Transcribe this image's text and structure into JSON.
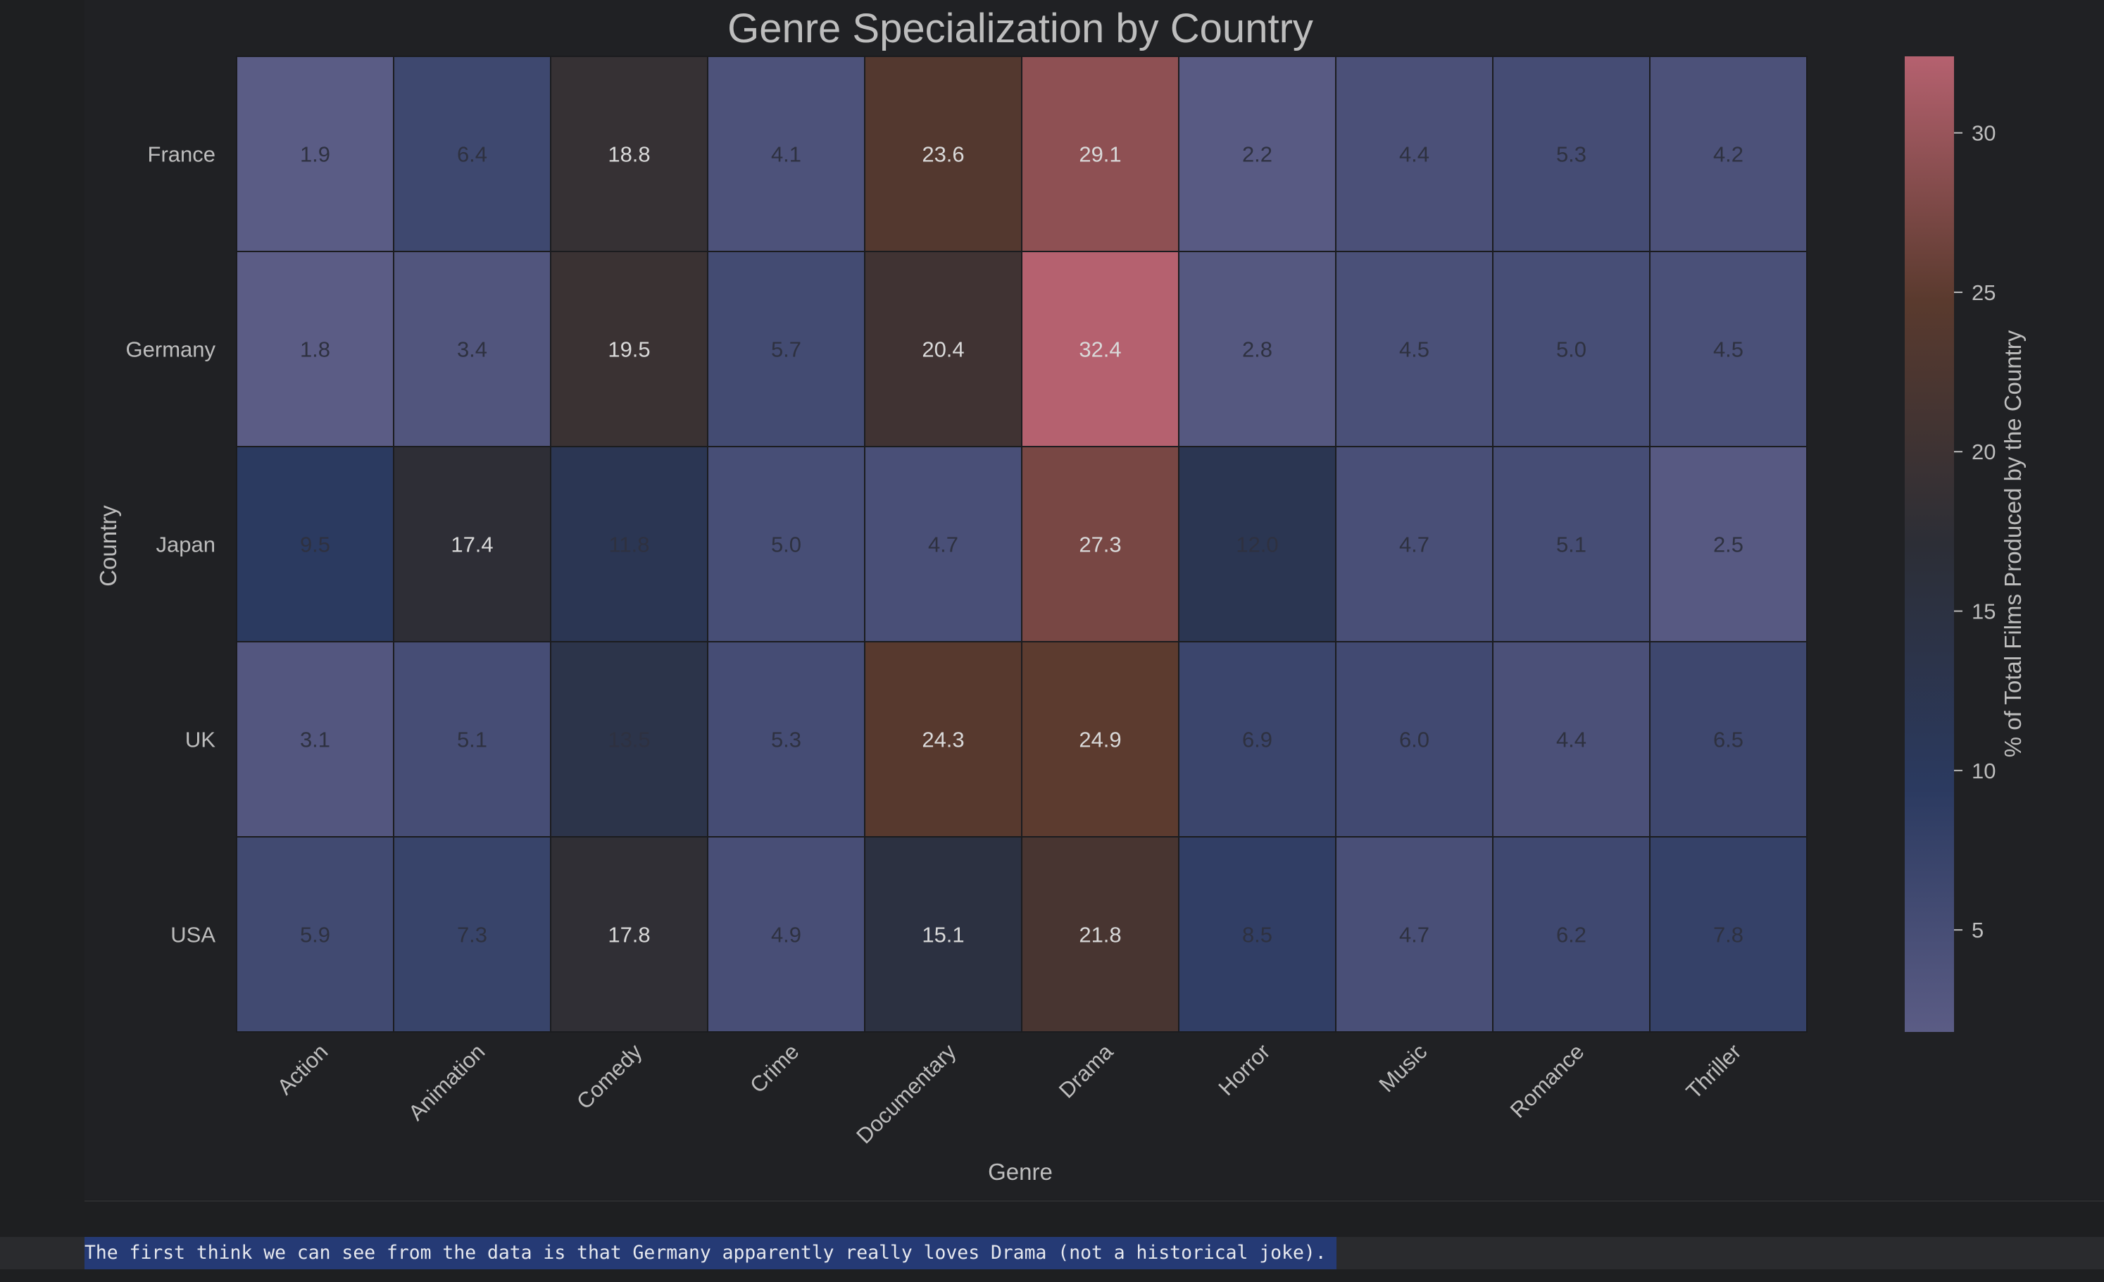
{
  "chart_data": {
    "type": "heatmap",
    "title": "Genre Specialization by Country",
    "xlabel": "Genre",
    "ylabel": "Country",
    "colorbar_label": "% of Total Films Produced by the Country",
    "colorbar_ticks": [
      5,
      10,
      15,
      20,
      25,
      30
    ],
    "colorbar_range": [
      1.8,
      32.4
    ],
    "x_categories": [
      "Action",
      "Animation",
      "Comedy",
      "Crime",
      "Documentary",
      "Drama",
      "Horror",
      "Music",
      "Romance",
      "Thriller"
    ],
    "y_categories": [
      "France",
      "Germany",
      "Japan",
      "UK",
      "USA"
    ],
    "values": [
      [
        1.9,
        6.4,
        18.8,
        4.1,
        23.6,
        29.1,
        2.2,
        4.4,
        5.3,
        4.2
      ],
      [
        1.8,
        3.4,
        19.5,
        5.7,
        20.4,
        32.4,
        2.8,
        4.5,
        5.0,
        4.5
      ],
      [
        9.5,
        17.4,
        11.8,
        5.0,
        4.7,
        27.3,
        12.0,
        4.7,
        5.1,
        2.5
      ],
      [
        3.1,
        5.1,
        13.5,
        5.3,
        24.3,
        24.9,
        6.9,
        6.0,
        4.4,
        6.5
      ],
      [
        5.9,
        7.3,
        17.8,
        4.9,
        15.1,
        21.8,
        8.5,
        4.7,
        6.2,
        7.8
      ]
    ],
    "value_format": "0.1f",
    "colors": {
      "colormap_stops": [
        "#5b5c85",
        "#2b3a60",
        "#2c2e36",
        "#5a3a2e",
        "#b5616f"
      ],
      "background": "#202124",
      "text": "#bdbdbd"
    }
  },
  "output": {
    "text": "The first think we can see from the data is that Germany apparently really loves Drama (not a historical joke)."
  }
}
